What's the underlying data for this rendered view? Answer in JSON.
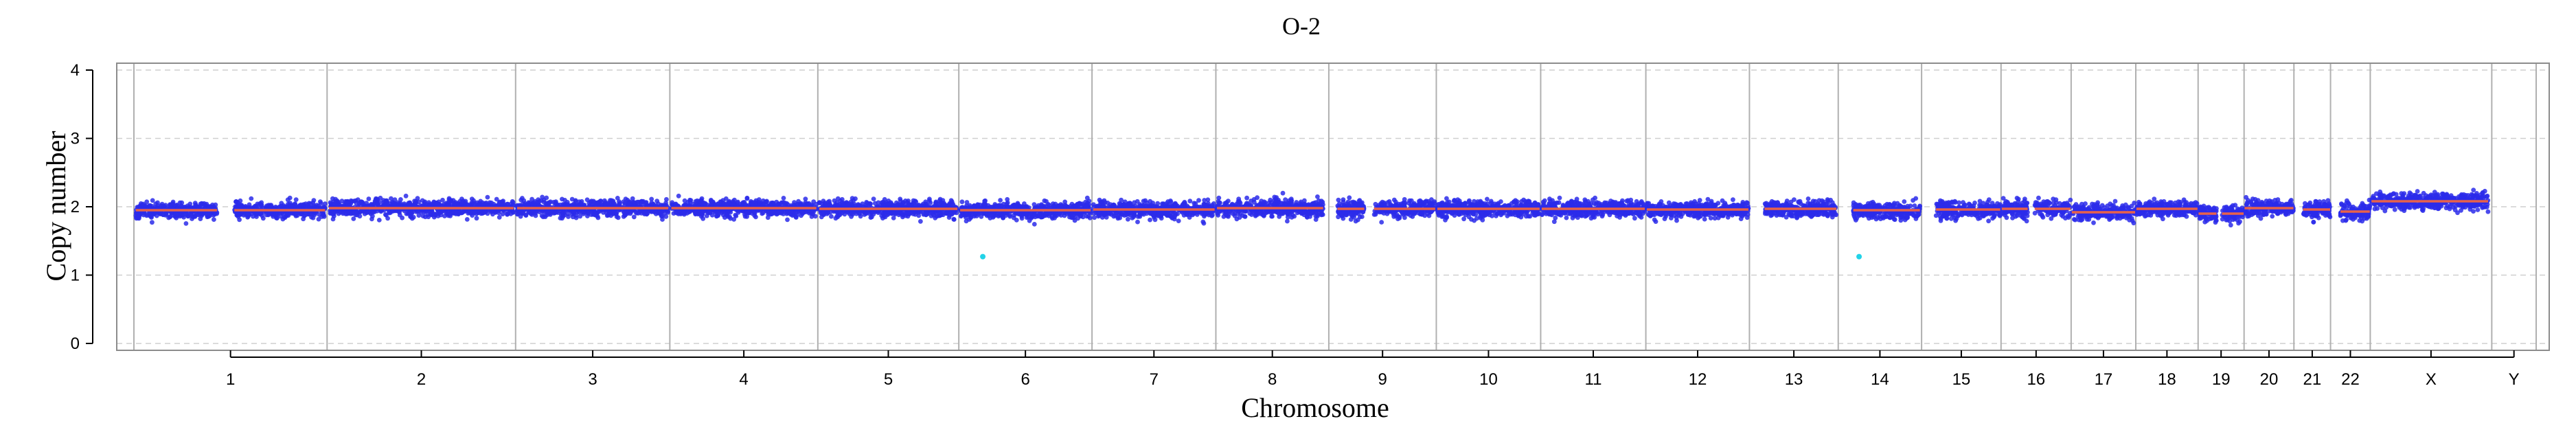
{
  "chart_data": {
    "type": "scatter",
    "title": "O-2",
    "xlabel": "Chromosome",
    "ylabel": "Copy number",
    "ylim": [
      0,
      4
    ],
    "yticks": [
      0,
      1,
      2,
      3,
      4
    ],
    "grid": "horizontal dashed",
    "chromosomes": [
      {
        "label": "1",
        "length": 248,
        "gaps": [
          [
            0.43,
            0.52
          ]
        ]
      },
      {
        "label": "2",
        "length": 242,
        "gaps": []
      },
      {
        "label": "3",
        "length": 198,
        "gaps": []
      },
      {
        "label": "4",
        "length": 190,
        "gaps": []
      },
      {
        "label": "5",
        "length": 181,
        "gaps": []
      },
      {
        "label": "6",
        "length": 171,
        "gaps": []
      },
      {
        "label": "7",
        "length": 159,
        "gaps": []
      },
      {
        "label": "8",
        "length": 145,
        "gaps": [
          [
            0.95,
            0.99
          ]
        ]
      },
      {
        "label": "9",
        "length": 138,
        "gaps": [
          [
            0.0,
            0.08
          ],
          [
            0.33,
            0.42
          ]
        ]
      },
      {
        "label": "10",
        "length": 134,
        "gaps": []
      },
      {
        "label": "11",
        "length": 135,
        "gaps": []
      },
      {
        "label": "12",
        "length": 133,
        "gaps": []
      },
      {
        "label": "13",
        "length": 114,
        "gaps": [
          [
            0.0,
            0.17
          ],
          [
            0.98,
            1.0
          ]
        ]
      },
      {
        "label": "14",
        "length": 107,
        "gaps": [
          [
            0.0,
            0.18
          ],
          [
            0.98,
            1.0
          ]
        ]
      },
      {
        "label": "15",
        "length": 102,
        "gaps": [
          [
            0.0,
            0.18
          ]
        ]
      },
      {
        "label": "16",
        "length": 90,
        "gaps": [
          [
            0.38,
            0.48
          ]
        ]
      },
      {
        "label": "17",
        "length": 83,
        "gaps": []
      },
      {
        "label": "18",
        "length": 80,
        "gaps": []
      },
      {
        "label": "19",
        "length": 59,
        "gaps": [
          [
            0.4,
            0.52
          ]
        ]
      },
      {
        "label": "20",
        "length": 64,
        "gaps": []
      },
      {
        "label": "21",
        "length": 47,
        "gaps": [
          [
            0.0,
            0.25
          ]
        ]
      },
      {
        "label": "22",
        "length": 51,
        "gaps": [
          [
            0.0,
            0.25
          ]
        ]
      },
      {
        "label": "X",
        "length": 156,
        "gaps": [
          [
            0.97,
            1.0
          ]
        ]
      },
      {
        "label": "Y",
        "length": 57,
        "gaps": [
          [
            0.0,
            1.0
          ]
        ]
      }
    ],
    "segments": [
      {
        "chromosome": "1",
        "value": 1.95
      },
      {
        "chromosome": "2",
        "value": 1.98
      },
      {
        "chromosome": "3",
        "value": 1.98
      },
      {
        "chromosome": "4",
        "value": 1.98
      },
      {
        "chromosome": "5",
        "value": 1.97
      },
      {
        "chromosome": "6",
        "value": 1.95
      },
      {
        "chromosome": "7",
        "value": 1.96
      },
      {
        "chromosome": "8",
        "value": 1.98
      },
      {
        "chromosome": "9",
        "value": 1.97
      },
      {
        "chromosome": "10",
        "value": 1.97
      },
      {
        "chromosome": "11",
        "value": 1.97
      },
      {
        "chromosome": "12",
        "value": 1.96
      },
      {
        "chromosome": "13",
        "value": 1.97
      },
      {
        "chromosome": "14",
        "value": 1.95
      },
      {
        "chromosome": "15",
        "value": 1.96
      },
      {
        "chromosome": "16",
        "value": 1.97
      },
      {
        "chromosome": "17",
        "value": 1.92
      },
      {
        "chromosome": "18",
        "value": 1.97
      },
      {
        "chromosome": "19",
        "value": 1.9
      },
      {
        "chromosome": "20",
        "value": 1.98
      },
      {
        "chromosome": "21",
        "value": 1.96
      },
      {
        "chromosome": "22",
        "value": 1.93
      },
      {
        "chromosome": "X",
        "value": 2.08
      }
    ],
    "outliers": [
      {
        "chromosome": "6",
        "position": 0.18,
        "value": 1.27
      },
      {
        "chromosome": "14",
        "position": 0.25,
        "value": 1.27
      }
    ],
    "point_spread": 0.14,
    "colors": {
      "points": "#2b2bea",
      "segment": "#e8624a",
      "outlier": "#22d3e8",
      "boundary": "#b0b0b0",
      "grid": "#cfcfcf",
      "frame": "#8c8c8c"
    }
  }
}
